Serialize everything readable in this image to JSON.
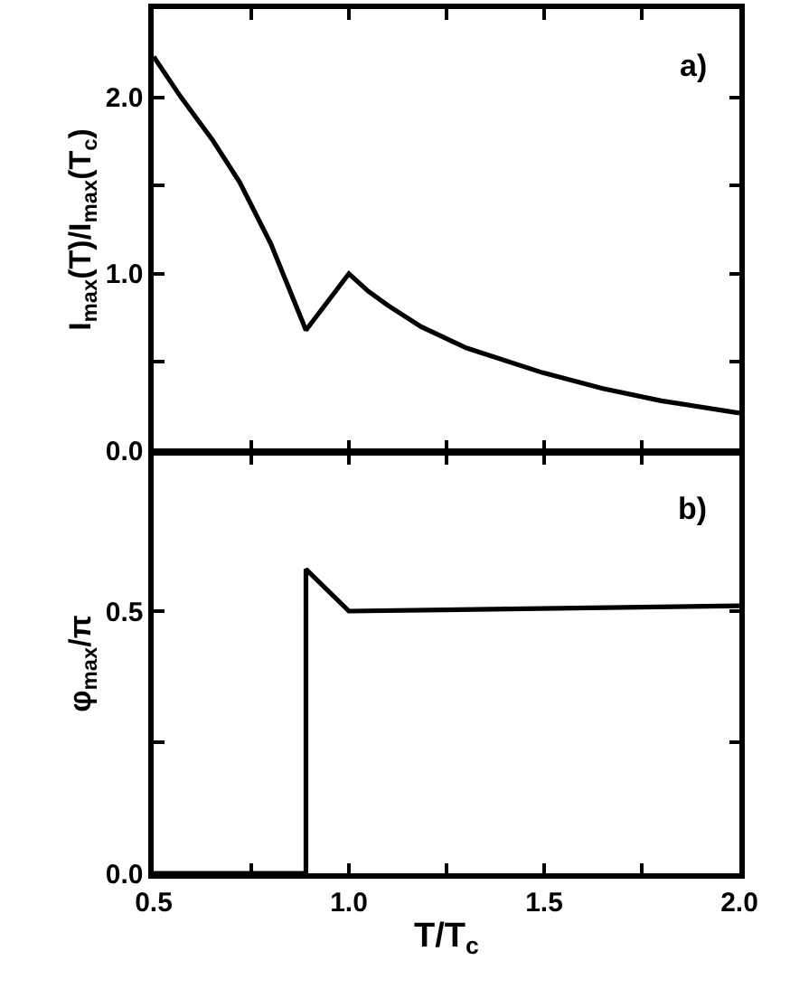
{
  "chart_data": [
    {
      "type": "line",
      "ylabel": "I$_{max}$(T)/I$_{max}$(T$_{c}$)",
      "annotations": [
        "a)"
      ],
      "xlim": [
        0.5,
        2.0
      ],
      "xticks": [
        {
          "value": 0.75,
          "label": null
        },
        {
          "value": 1,
          "label": null
        },
        {
          "value": 1.25,
          "label": null
        },
        {
          "value": 1.5,
          "label": null
        },
        {
          "value": 1.75,
          "label": null
        }
      ],
      "ylim": [
        0,
        2.5
      ],
      "yticks": [
        {
          "value": 0,
          "label": "0.0"
        },
        {
          "value": 0.5,
          "label": null
        },
        {
          "value": 1,
          "label": "1.0"
        },
        {
          "value": 1.5,
          "label": null
        },
        {
          "value": 2,
          "label": "2.0"
        }
      ],
      "tick_labels": "y",
      "grid": false,
      "marker": "none",
      "line_style": "solid",
      "series": [
        {
          "color": "#000000",
          "x": [
            0.5,
            0.57,
            0.65,
            0.72,
            0.8,
            0.89,
            1.0,
            1.05,
            1.1,
            1.185,
            1.3,
            1.495,
            1.65,
            1.8,
            2.0
          ],
          "values": [
            2.23,
            2.0,
            1.76,
            1.52,
            1.17,
            0.68,
            1.0,
            0.9,
            0.82,
            0.7,
            0.58,
            0.44,
            0.35,
            0.28,
            0.21
          ]
        }
      ]
    },
    {
      "type": "line",
      "xlabel": "T/T$_{c}$",
      "ylabel": "φ$_{max}$/π",
      "annotations": [
        "b)"
      ],
      "xlim": [
        0.5,
        2.0
      ],
      "xticks": [
        0.5,
        {
          "value": 0.75,
          "label": null
        },
        {
          "value": 1,
          "label": "1.0"
        },
        {
          "value": 1.25,
          "label": null
        },
        1.5,
        {
          "value": 1.75,
          "label": null
        },
        {
          "value": 2,
          "label": "2.0"
        }
      ],
      "ylim": [
        0,
        0.8
      ],
      "yticks": [
        {
          "value": 0,
          "label": "0.0"
        },
        {
          "value": 0.25,
          "label": null
        },
        0.5
      ],
      "grid": false,
      "marker": "none",
      "line_style": "solid",
      "series": [
        {
          "color": "#000000",
          "x": [
            0.5,
            0.89,
            0.89,
            1.0,
            2.0
          ],
          "values": [
            0,
            0,
            0.58,
            0.5,
            0.51
          ]
        }
      ]
    }
  ]
}
